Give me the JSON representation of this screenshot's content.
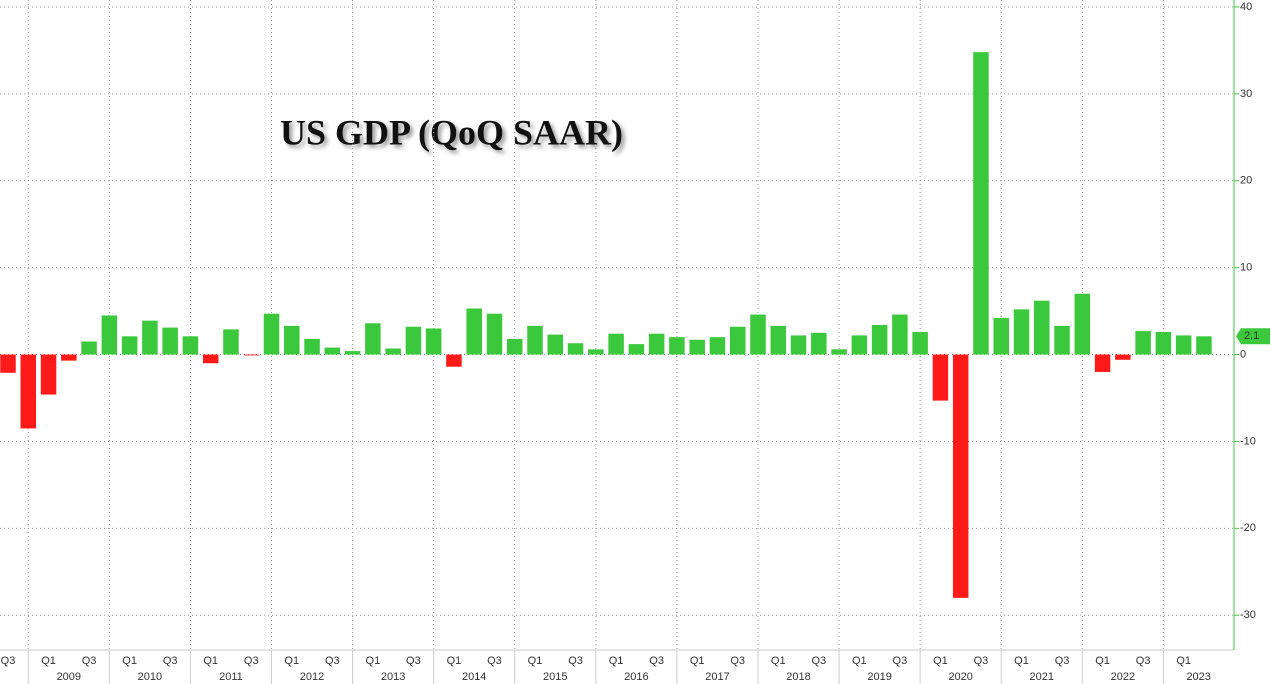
{
  "chart_data": {
    "type": "bar",
    "title": "US GDP (QoQ SAAR)",
    "categories": [
      "Q3",
      null,
      "Q1",
      null,
      "Q3",
      null,
      "Q1",
      null,
      "Q3",
      null,
      "Q1",
      null,
      "Q3",
      null,
      "Q1",
      null,
      "Q3",
      null,
      "Q1",
      null,
      "Q3",
      null,
      "Q1",
      null,
      "Q3",
      null,
      "Q1",
      null,
      "Q3",
      null,
      "Q1",
      null,
      "Q3",
      null,
      "Q1",
      null,
      "Q3",
      null,
      "Q1",
      null,
      "Q3",
      null,
      "Q1",
      null,
      "Q3",
      null,
      "Q1",
      null,
      "Q3",
      null,
      "Q1",
      null,
      "Q3",
      null,
      "Q1",
      null,
      "Q3",
      null,
      "Q1",
      null
    ],
    "year_labels": [
      "2009",
      "2010",
      "2011",
      "2012",
      "2013",
      "2014",
      "2015",
      "2016",
      "2017",
      "2018",
      "2019",
      "2020",
      "2021",
      "2022",
      "2023"
    ],
    "values": [
      -2.1,
      -8.5,
      -4.6,
      -0.7,
      1.5,
      4.5,
      2.1,
      3.9,
      3.1,
      2.1,
      -1.0,
      2.9,
      -0.1,
      4.7,
      3.3,
      1.8,
      0.8,
      0.4,
      3.6,
      0.7,
      3.2,
      3.0,
      -1.4,
      5.3,
      4.7,
      1.8,
      3.3,
      2.3,
      1.3,
      0.6,
      2.4,
      1.2,
      2.4,
      2.0,
      1.7,
      2.0,
      3.2,
      4.6,
      3.3,
      2.2,
      2.5,
      0.6,
      2.2,
      3.4,
      4.6,
      2.6,
      -5.3,
      -28.0,
      34.8,
      4.2,
      5.2,
      6.2,
      3.3,
      7.0,
      -2.0,
      -0.6,
      2.7,
      2.6,
      2.2,
      2.1
    ],
    "positive_color": "#3cc83c",
    "negative_color": "#ff1a1a",
    "ylim": [
      -34,
      40.8
    ],
    "yticks": [
      -30,
      -20,
      -10,
      0,
      10,
      20,
      30,
      40
    ],
    "grid": true
  }
}
